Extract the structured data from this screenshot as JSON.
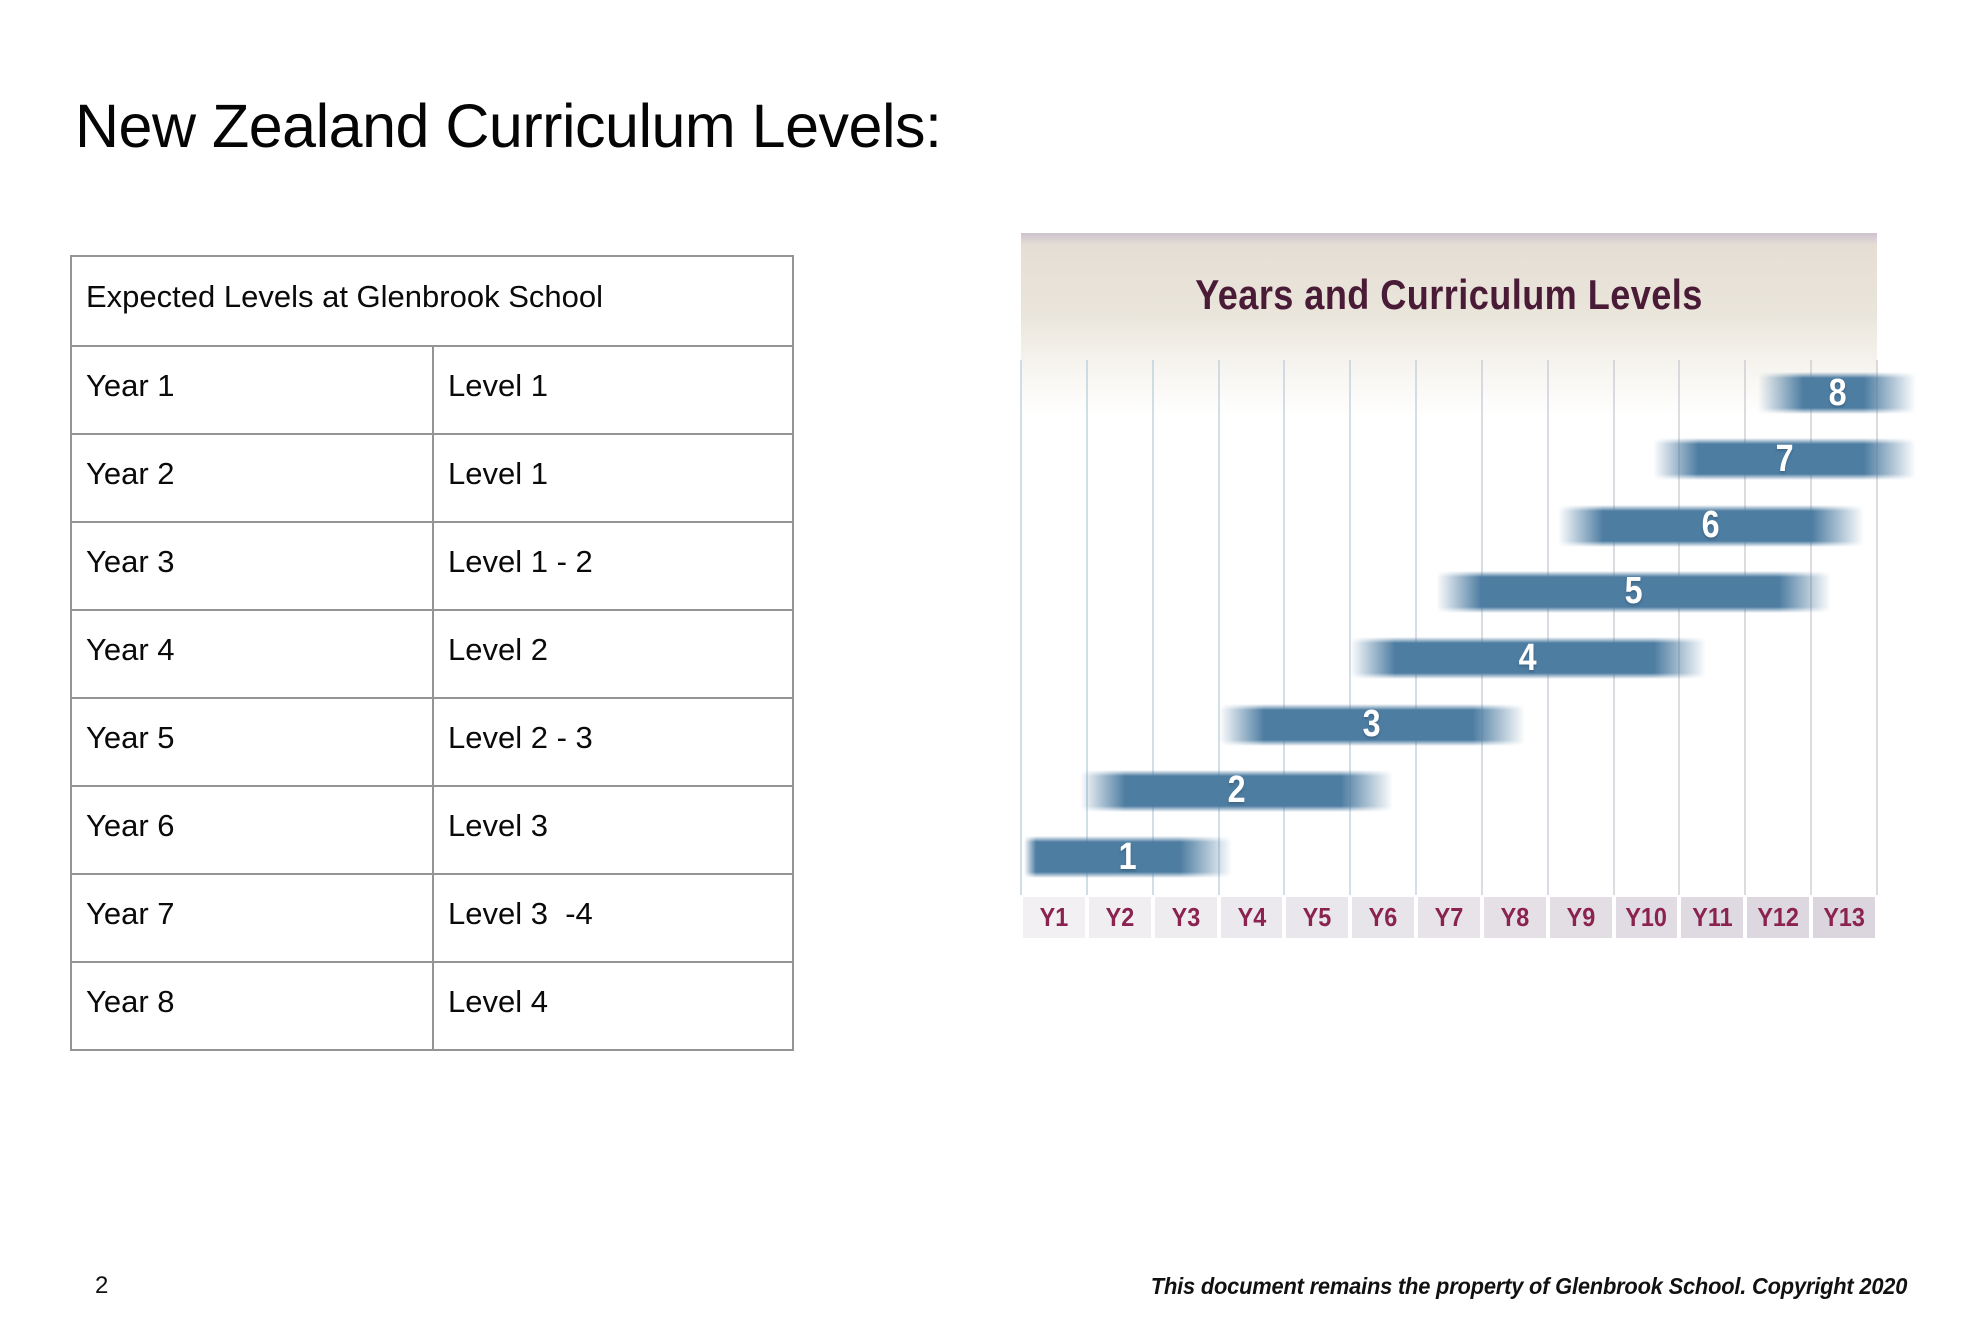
{
  "page": {
    "title": "New Zealand Curriculum Levels:",
    "footer": {
      "page_number": "2",
      "copyright": "This document remains the property of Glenbrook School. Copyright 2020"
    }
  },
  "table": {
    "header": "Expected Levels at Glenbrook School",
    "rows": [
      {
        "year": "Year 1",
        "level": "Level 1"
      },
      {
        "year": "Year 2",
        "level": "Level 1"
      },
      {
        "year": "Year 3",
        "level": "Level 1 - 2"
      },
      {
        "year": "Year 4",
        "level": "Level 2"
      },
      {
        "year": "Year 5",
        "level": "Level 2 - 3"
      },
      {
        "year": "Year 6",
        "level": "Level 3"
      },
      {
        "year": "Year 7",
        "level": "Level 3  -4"
      },
      {
        "year": "Year 8",
        "level": "Level 4"
      }
    ]
  },
  "chart_data": {
    "type": "bar",
    "subtype": "horizontal-range-gantt",
    "title": "Years and Curriculum Levels",
    "x_categories": [
      "Y1",
      "Y2",
      "Y3",
      "Y4",
      "Y5",
      "Y6",
      "Y7",
      "Y8",
      "Y9",
      "Y10",
      "Y11",
      "Y12",
      "Y13"
    ],
    "grid": "vertical-gridlines",
    "legend": "none",
    "bars": [
      {
        "label": "1",
        "level": 1,
        "start_year": 1.05,
        "end_year": 4.2,
        "years_spanned": "Y1–Y3, fading into Y4"
      },
      {
        "label": "2",
        "level": 2,
        "start_year": 1.9,
        "end_year": 6.65,
        "years_spanned": "Y2–Y6"
      },
      {
        "label": "3",
        "level": 3,
        "start_year": 4.0,
        "end_year": 8.65,
        "years_spanned": "Y4–Y8"
      },
      {
        "label": "4",
        "level": 4,
        "start_year": 6.0,
        "end_year": 11.4,
        "years_spanned": "Y6–Y11"
      },
      {
        "label": "5",
        "level": 5,
        "start_year": 7.3,
        "end_year": 13.3,
        "years_spanned": "Y7–Y13"
      },
      {
        "label": "6",
        "level": 6,
        "start_year": 9.15,
        "end_year": 13.8,
        "years_spanned": "Y9–Y13+"
      },
      {
        "label": "7",
        "level": 7,
        "start_year": 10.6,
        "end_year": 14.6,
        "years_spanned": "Y10–Y13+, runs off chart edge"
      },
      {
        "label": "8",
        "level": 8,
        "start_year": 12.2,
        "end_year": 14.6,
        "years_spanned": "Y12–Y13+, runs off chart edge"
      }
    ],
    "colors": {
      "bar": "#4e7da2",
      "bar_label": "#ffffff",
      "title": "#4a1b36",
      "axis_label": "#8b2351",
      "axis_cell_bg_left": "#f2f0f3",
      "axis_cell_bg_right": "#dbd5dd",
      "gridline_left": "#accbdc",
      "gridline_right": "#cbc2c8",
      "header_gradient_top": "#cdc2cf",
      "header_gradient_beige": "#e7e1d7"
    }
  }
}
